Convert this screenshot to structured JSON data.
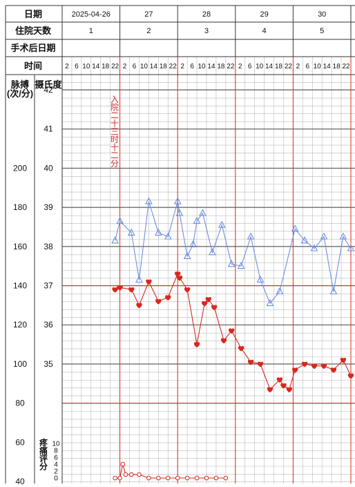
{
  "header": {
    "row_labels": [
      "日期",
      "住院天数",
      "手术后日期",
      "时间"
    ],
    "dates": [
      "2025-04-26",
      "27",
      "28",
      "29",
      "30"
    ],
    "hospital_days": [
      "1",
      "2",
      "3",
      "4",
      "5"
    ],
    "hours": [
      "2",
      "6",
      "10",
      "14",
      "18",
      "22"
    ]
  },
  "axes": {
    "pulse_title_1": "脉搏",
    "pulse_title_2": "(次/分)",
    "temp_title": "摄氏度",
    "pulse_ticks": [
      "200",
      "180",
      "160",
      "140",
      "120",
      "100",
      "80",
      "60",
      "40"
    ],
    "temp_ticks": [
      "42",
      "41",
      "40",
      "39",
      "38",
      "37",
      "36",
      "35"
    ],
    "pain_title_chars": [
      "疼",
      "痛",
      "评",
      "分"
    ],
    "pain_ticks": [
      "10",
      "8",
      "6",
      "4",
      "2",
      "0"
    ]
  },
  "annotation": {
    "admission_chars": [
      "入",
      "院",
      "二",
      "十",
      "三",
      "时",
      "十",
      "二",
      "分"
    ]
  },
  "colors": {
    "temperature": "#6d8fe0",
    "pulse": "#d9281c",
    "pain": "#d9281c",
    "day_line": "#d9281c",
    "grid": "#9a9a9a"
  },
  "chart_data": {
    "type": "line",
    "x_unit": "time slot (6 slots per day at 2,6,10,14,18,22h)",
    "series": [
      {
        "name": "temperature",
        "unit": "°C",
        "marker": "triangle",
        "points": [
          [
            5.5,
            38.15
          ],
          [
            6,
            38.65
          ],
          [
            7.2,
            38.35
          ],
          [
            8,
            37.15
          ],
          [
            9,
            39.15
          ],
          [
            10,
            38.35
          ],
          [
            11,
            38.25
          ],
          [
            12,
            39.15
          ],
          [
            12.2,
            38.85
          ],
          [
            13,
            37.75
          ],
          [
            13.6,
            38.05
          ],
          [
            14,
            38.65
          ],
          [
            14.6,
            38.85
          ],
          [
            15.6,
            37.85
          ],
          [
            16.6,
            38.55
          ],
          [
            17.6,
            37.55
          ],
          [
            18.6,
            37.5
          ],
          [
            19.6,
            38.25
          ],
          [
            20.6,
            37.15
          ],
          [
            21.6,
            36.55
          ],
          [
            22.6,
            36.85
          ],
          [
            24.2,
            38.45
          ],
          [
            25.2,
            38.15
          ],
          [
            26.2,
            37.95
          ],
          [
            27.2,
            38.25
          ],
          [
            28.2,
            36.85
          ],
          [
            29.2,
            38.25
          ],
          [
            30,
            37.95
          ]
        ]
      },
      {
        "name": "pulse",
        "unit": "次/分",
        "marker": "heart",
        "points": [
          [
            5.5,
            138
          ],
          [
            6,
            139
          ],
          [
            7.2,
            138
          ],
          [
            8,
            130
          ],
          [
            9,
            142
          ],
          [
            10,
            132
          ],
          [
            11,
            134
          ],
          [
            12,
            146
          ],
          [
            12.2,
            144
          ],
          [
            13,
            138
          ],
          [
            14,
            110
          ],
          [
            14.8,
            131
          ],
          [
            15.2,
            133
          ],
          [
            15.8,
            129
          ],
          [
            16.8,
            112
          ],
          [
            17.6,
            117
          ],
          [
            18.6,
            108
          ],
          [
            19.6,
            101
          ],
          [
            20.6,
            100
          ],
          [
            21.6,
            87
          ],
          [
            22.6,
            92
          ],
          [
            23,
            89
          ],
          [
            23.6,
            87
          ],
          [
            24.2,
            97
          ],
          [
            25.2,
            100
          ],
          [
            26.2,
            99
          ],
          [
            27.2,
            99
          ],
          [
            28.2,
            97
          ],
          [
            29.2,
            102
          ],
          [
            30,
            94
          ]
        ]
      },
      {
        "name": "pain",
        "unit": "分",
        "marker": "circle",
        "points": [
          [
            5.5,
            0
          ],
          [
            6,
            0
          ],
          [
            6.3,
            4
          ],
          [
            6.6,
            1
          ],
          [
            7.2,
            1
          ],
          [
            8,
            1
          ],
          [
            9,
            0
          ],
          [
            10,
            0
          ],
          [
            11,
            0
          ],
          [
            12,
            0
          ],
          [
            13,
            0
          ],
          [
            14,
            0
          ],
          [
            15,
            0
          ],
          [
            16,
            0
          ],
          [
            17,
            0
          ]
        ]
      }
    ],
    "temp_range": [
      34,
      42
    ],
    "pulse_range": [
      40,
      200
    ],
    "pain_range": [
      0,
      10
    ]
  }
}
